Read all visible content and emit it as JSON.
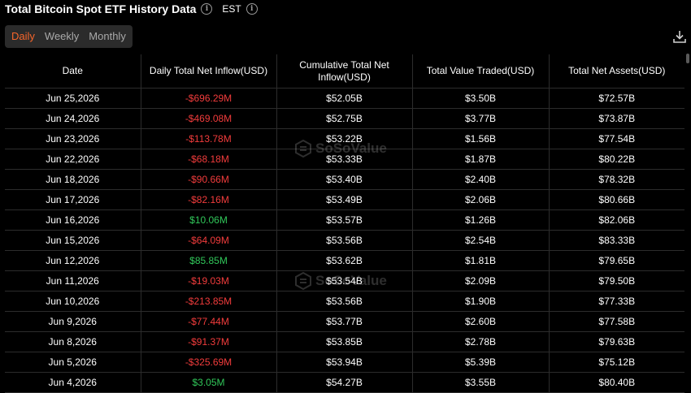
{
  "header": {
    "title": "Total Bitcoin Spot ETF History Data",
    "timezone": "EST"
  },
  "tabs": [
    {
      "label": "Daily",
      "active": true
    },
    {
      "label": "Weekly",
      "active": false
    },
    {
      "label": "Monthly",
      "active": false
    }
  ],
  "watermark": {
    "text": "SoSoValue"
  },
  "colors": {
    "accent": "#f5652b",
    "negative": "#f23c3c",
    "positive": "#31c85a",
    "background": "#000000",
    "grid": "#2c2c2c"
  },
  "table": {
    "columns": [
      "Date",
      "Daily Total Net Inflow(USD)",
      "Cumulative Total Net Inflow(USD)",
      "Total Value Traded(USD)",
      "Total Net Assets(USD)"
    ],
    "rows": [
      {
        "date": "Jun 25,2026",
        "inflow": "-$696.29M",
        "sign": "neg",
        "cumulative": "$52.05B",
        "traded": "$3.50B",
        "assets": "$72.57B"
      },
      {
        "date": "Jun 24,2026",
        "inflow": "-$469.08M",
        "sign": "neg",
        "cumulative": "$52.75B",
        "traded": "$3.77B",
        "assets": "$73.87B"
      },
      {
        "date": "Jun 23,2026",
        "inflow": "-$113.78M",
        "sign": "neg",
        "cumulative": "$53.22B",
        "traded": "$1.56B",
        "assets": "$77.54B"
      },
      {
        "date": "Jun 22,2026",
        "inflow": "-$68.18M",
        "sign": "neg",
        "cumulative": "$53.33B",
        "traded": "$1.87B",
        "assets": "$80.22B"
      },
      {
        "date": "Jun 18,2026",
        "inflow": "-$90.66M",
        "sign": "neg",
        "cumulative": "$53.40B",
        "traded": "$2.40B",
        "assets": "$78.32B"
      },
      {
        "date": "Jun 17,2026",
        "inflow": "-$82.16M",
        "sign": "neg",
        "cumulative": "$53.49B",
        "traded": "$2.06B",
        "assets": "$80.66B"
      },
      {
        "date": "Jun 16,2026",
        "inflow": "$10.06M",
        "sign": "pos",
        "cumulative": "$53.57B",
        "traded": "$1.26B",
        "assets": "$82.06B"
      },
      {
        "date": "Jun 15,2026",
        "inflow": "-$64.09M",
        "sign": "neg",
        "cumulative": "$53.56B",
        "traded": "$2.54B",
        "assets": "$83.33B"
      },
      {
        "date": "Jun 12,2026",
        "inflow": "$85.85M",
        "sign": "pos",
        "cumulative": "$53.62B",
        "traded": "$1.81B",
        "assets": "$79.65B"
      },
      {
        "date": "Jun 11,2026",
        "inflow": "-$19.03M",
        "sign": "neg",
        "cumulative": "$53.54B",
        "traded": "$2.09B",
        "assets": "$79.50B"
      },
      {
        "date": "Jun 10,2026",
        "inflow": "-$213.85M",
        "sign": "neg",
        "cumulative": "$53.56B",
        "traded": "$1.90B",
        "assets": "$77.33B"
      },
      {
        "date": "Jun 9,2026",
        "inflow": "-$77.44M",
        "sign": "neg",
        "cumulative": "$53.77B",
        "traded": "$2.60B",
        "assets": "$77.58B"
      },
      {
        "date": "Jun 8,2026",
        "inflow": "-$91.37M",
        "sign": "neg",
        "cumulative": "$53.85B",
        "traded": "$2.78B",
        "assets": "$79.63B"
      },
      {
        "date": "Jun 5,2026",
        "inflow": "-$325.69M",
        "sign": "neg",
        "cumulative": "$53.94B",
        "traded": "$5.39B",
        "assets": "$75.12B"
      },
      {
        "date": "Jun 4,2026",
        "inflow": "$3.05M",
        "sign": "pos",
        "cumulative": "$54.27B",
        "traded": "$3.55B",
        "assets": "$80.40B"
      }
    ]
  }
}
